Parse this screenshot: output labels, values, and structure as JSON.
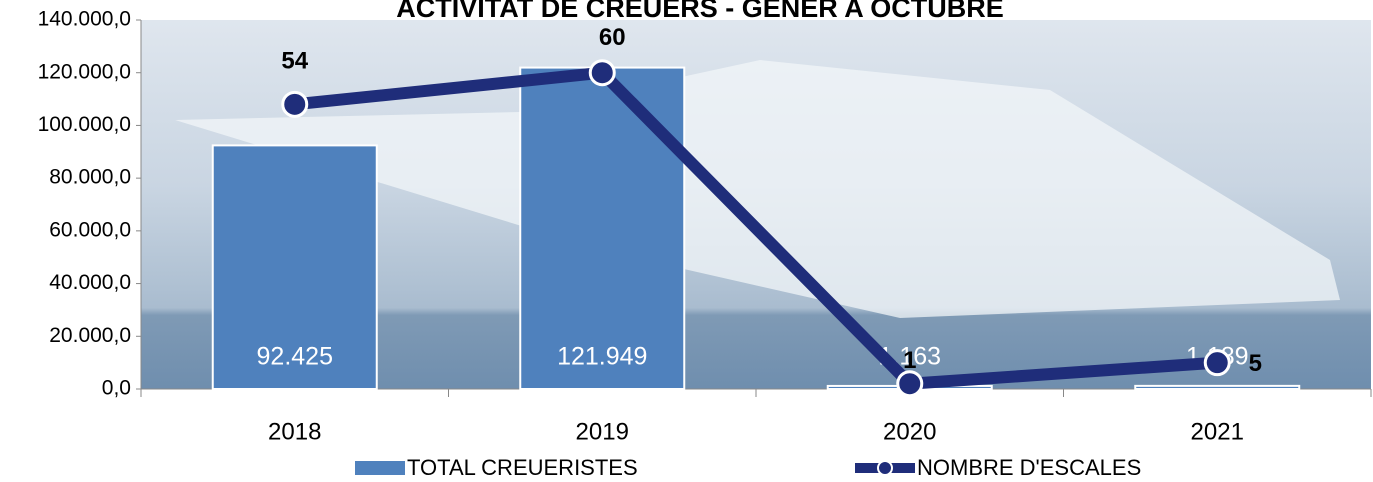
{
  "chart_data": {
    "type": "bar_line",
    "title": "ACTIVITAT DE CREUERS - GENER A OCTUBRE",
    "categories": [
      "2018",
      "2019",
      "2020",
      "2021"
    ],
    "series": [
      {
        "name": "TOTAL CREUERISTES",
        "type": "bar",
        "color": "#4f81bd",
        "values": [
          92425,
          121949,
          1163,
          1189
        ],
        "value_labels": [
          "92.425",
          "121.949",
          "1.163",
          "1.189"
        ]
      },
      {
        "name": "NOMBRE D'ESCALES",
        "type": "line",
        "axis": "y2",
        "color": "#1f2d7a",
        "values": [
          54,
          60,
          1,
          5
        ]
      }
    ],
    "ylim": [
      0,
      140000
    ],
    "yticks": [
      {
        "value": 0,
        "label": "0,0"
      },
      {
        "value": 20000,
        "label": "20.000,0"
      },
      {
        "value": 40000,
        "label": "40.000,0"
      },
      {
        "value": 60000,
        "label": "60.000,0"
      },
      {
        "value": 80000,
        "label": "80.000,0"
      },
      {
        "value": 100000,
        "label": "100.000,0"
      },
      {
        "value": 120000,
        "label": "120.000,0"
      },
      {
        "value": 140000,
        "label": "140.000,0"
      }
    ],
    "y2lim": [
      0,
      70
    ],
    "legend": "bottom"
  }
}
